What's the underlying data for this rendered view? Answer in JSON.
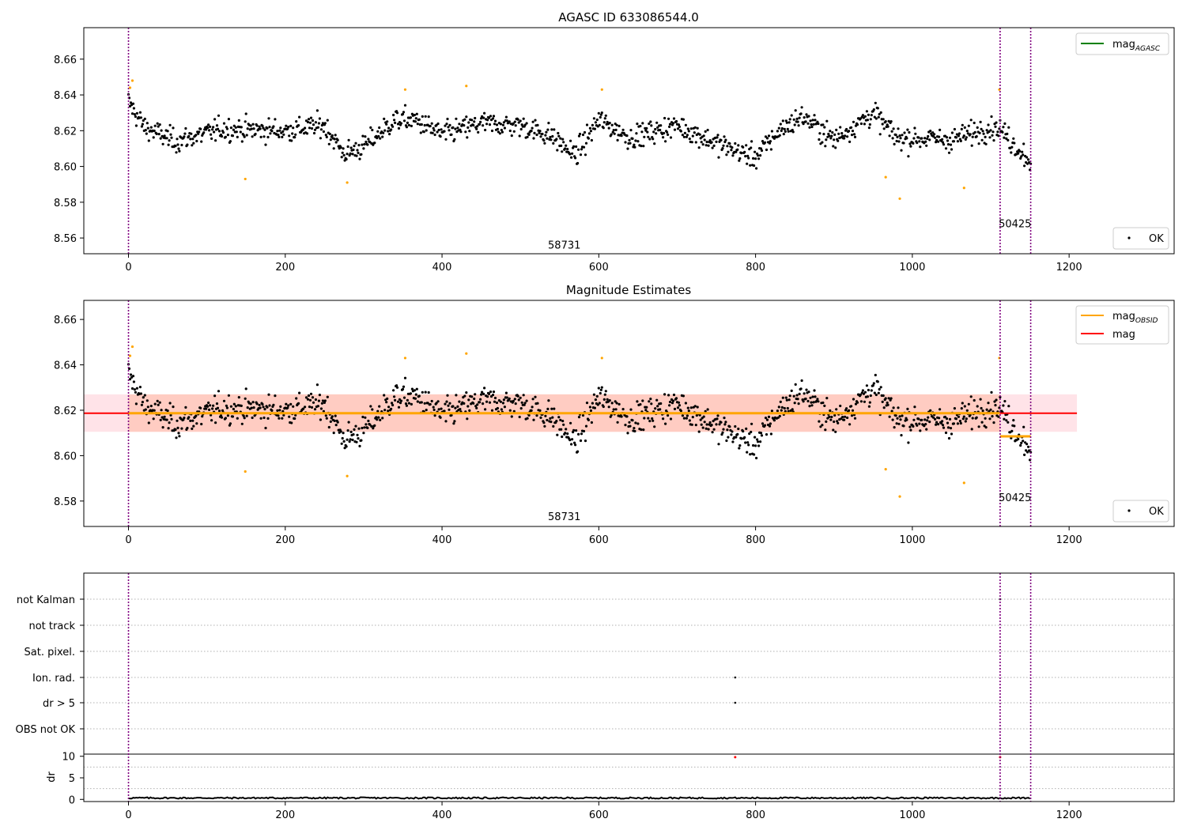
{
  "colors": {
    "ok_points": "#000000",
    "outlier_points": "#ffa500",
    "mag_agasc_line": "#008000",
    "mag_obsid_line": "#ffa500",
    "mag_line": "#ff0000",
    "band_pink": "#ffc0cb",
    "band_orange": "#ffa07a",
    "obsid_boundary": "#800080",
    "dr_bad": "#ff0000",
    "grid": "#b0b0b0"
  },
  "chart_data": [
    {
      "type": "scatter",
      "title": "AGASC ID 633086544.0",
      "xlim": [
        -57,
        1334
      ],
      "ylim": [
        8.5512,
        8.6776
      ],
      "xticks": [
        0,
        200,
        400,
        600,
        800,
        1000,
        1200
      ],
      "yticks": [
        8.56,
        8.58,
        8.6,
        8.62,
        8.64,
        8.66
      ],
      "obsid_boundaries": [
        0,
        1112,
        1151
      ],
      "obsid_labels": [
        {
          "x": 556,
          "y": 8.554,
          "text": "58731"
        },
        {
          "x": 1131,
          "y": 8.566,
          "text": "50425"
        }
      ],
      "legend_upper": [
        {
          "name": "magAGASC",
          "base": "mag",
          "sub": "AGASC",
          "kind": "line"
        }
      ],
      "legend_lower": [
        {
          "name": "OK",
          "kind": "point"
        }
      ],
      "outliers": [
        {
          "x": 2,
          "y": 8.644
        },
        {
          "x": 5,
          "y": 8.648
        },
        {
          "x": 149,
          "y": 8.593
        },
        {
          "x": 279,
          "y": 8.591
        },
        {
          "x": 353,
          "y": 8.643
        },
        {
          "x": 431,
          "y": 8.645
        },
        {
          "x": 604,
          "y": 8.643
        },
        {
          "x": 966,
          "y": 8.594
        },
        {
          "x": 984,
          "y": 8.582
        },
        {
          "x": 1066,
          "y": 8.588
        },
        {
          "x": 1111,
          "y": 8.643
        }
      ]
    },
    {
      "type": "scatter",
      "title": "Magnitude Estimates",
      "xlim": [
        -57,
        1334
      ],
      "ylim": [
        8.5688,
        8.6684
      ],
      "xticks": [
        0,
        200,
        400,
        600,
        800,
        1000,
        1200
      ],
      "yticks": [
        8.58,
        8.6,
        8.62,
        8.64,
        8.66
      ],
      "obsid_boundaries": [
        0,
        1112,
        1151
      ],
      "obsid_labels": [
        {
          "x": 556,
          "y": 8.5715,
          "text": "58731"
        },
        {
          "x": 1131,
          "y": 8.58,
          "text": "50425"
        }
      ],
      "mag": 8.6187,
      "mag_band_outer": [
        -57,
        1210,
        8.6105,
        8.627
      ],
      "mag_band_inner": [
        0,
        1112,
        8.6105,
        8.627
      ],
      "mag_obsid": [
        {
          "x0": 0,
          "x1": 1112,
          "y": 8.6187
        },
        {
          "x0": 1112,
          "x1": 1151,
          "y": 8.6085
        }
      ],
      "legend_upper": [
        {
          "name": "magOBSID",
          "base": "mag",
          "sub": "OBSID",
          "kind": "line"
        },
        {
          "name": "mag",
          "base": "mag",
          "sub": "",
          "kind": "line"
        }
      ],
      "legend_lower": [
        {
          "name": "OK",
          "kind": "point"
        }
      ]
    },
    {
      "type": "scatter",
      "title": "",
      "xlim": [
        -57,
        1334
      ],
      "xticks": [
        0,
        200,
        400,
        600,
        800,
        1000,
        1200
      ],
      "flag_labels": [
        "not Kalman",
        "not track",
        "Sat. pixel.",
        "Ion. rad.",
        "dr > 5",
        "OBS not OK"
      ],
      "flag_points": [
        {
          "x": 774,
          "flag": "Ion. rad."
        },
        {
          "x": 774,
          "flag": "dr > 5"
        },
        {
          "x": 1112,
          "flag": "not Kalman"
        }
      ],
      "dr_ylabel": "dr",
      "dr_ylim": [
        -0.5,
        10.5
      ],
      "dr_yticks": [
        0,
        5,
        10
      ],
      "dr_bad_points": [
        {
          "x": 774,
          "y": 9.8
        },
        {
          "x": 1112,
          "y": 9.8
        }
      ]
    }
  ]
}
